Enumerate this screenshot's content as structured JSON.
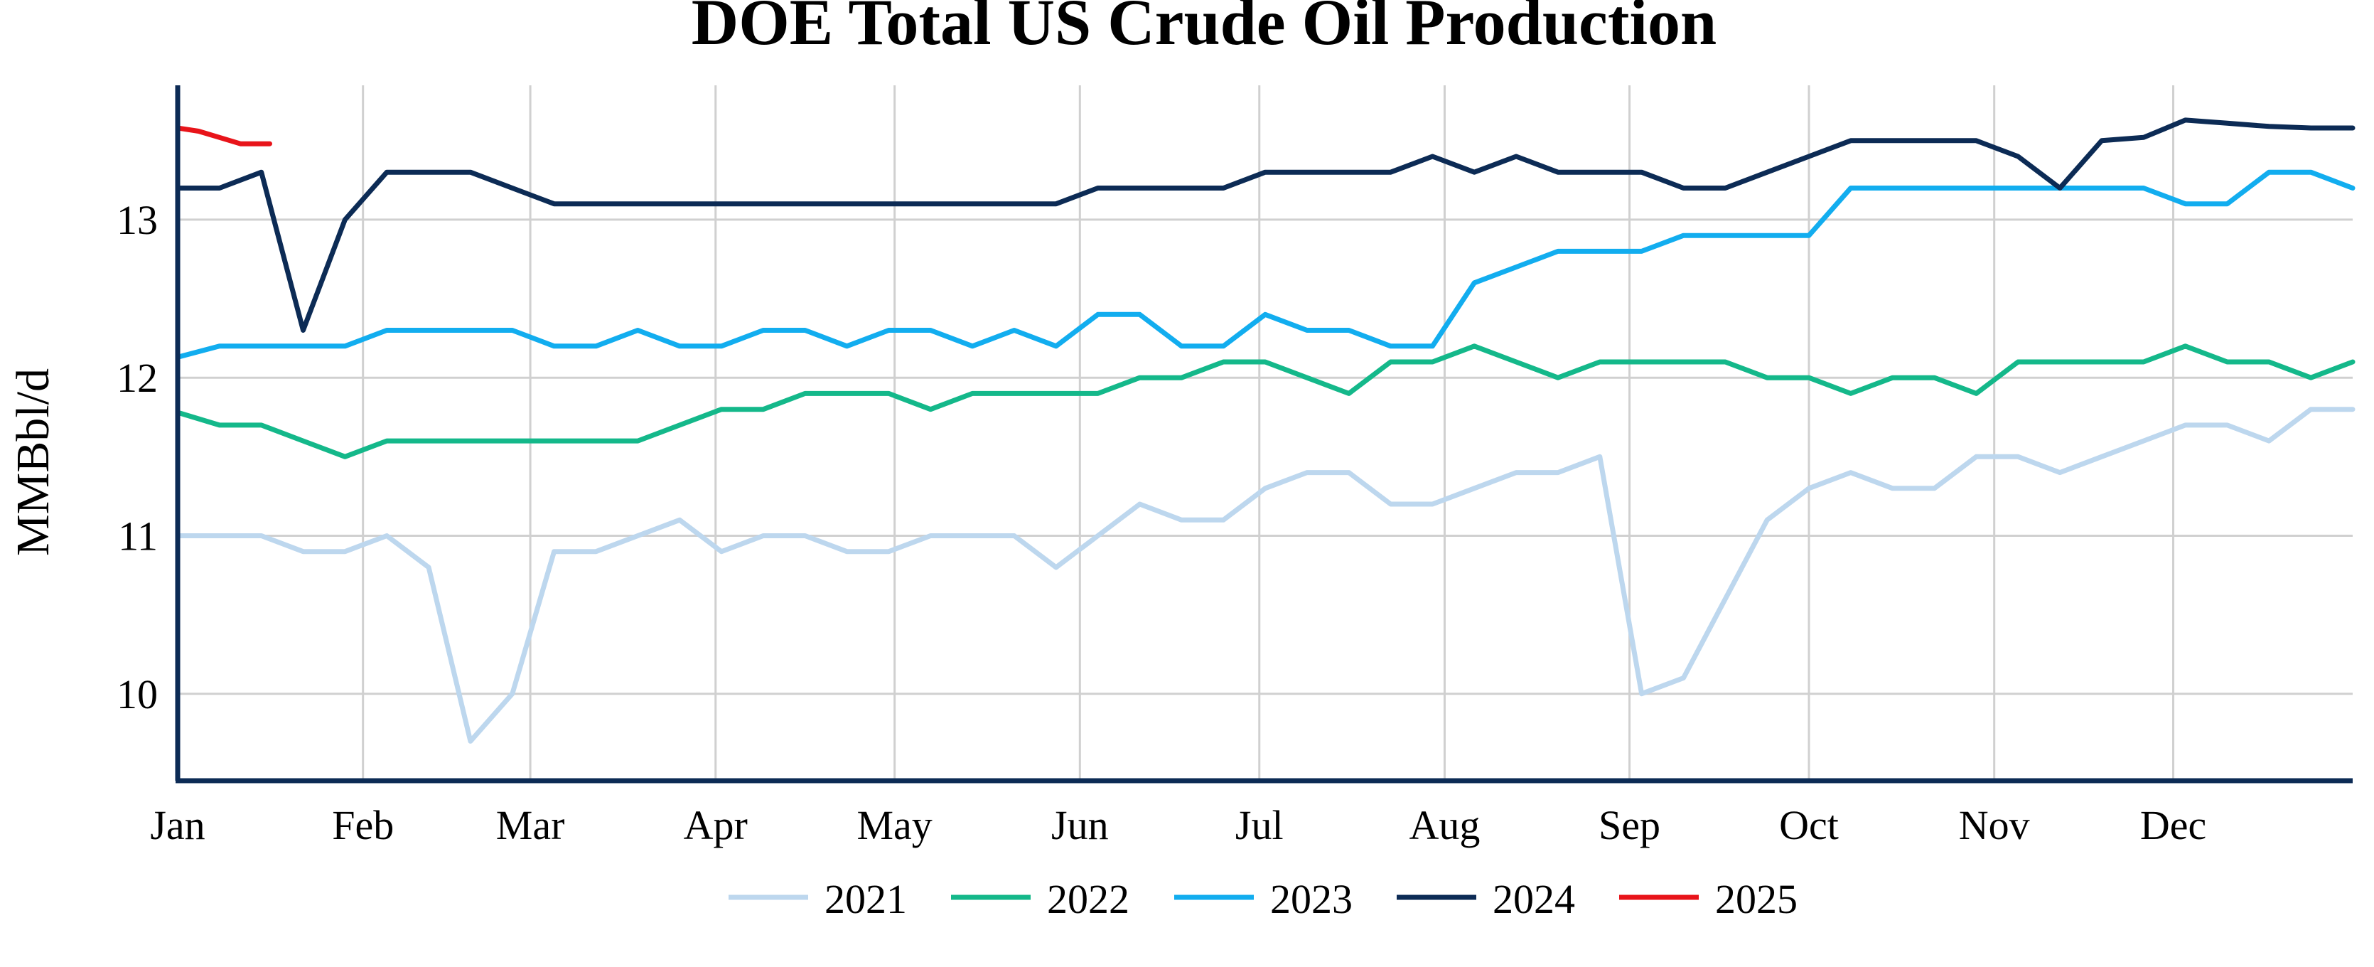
{
  "chart_data": {
    "type": "line",
    "title": "DOE Total US Crude Oil Production",
    "xlabel": "",
    "ylabel": "MMBbl/d",
    "x_unit": "week of year",
    "xlim": [
      1,
      53
    ],
    "ylim": [
      9.45,
      13.85
    ],
    "y_ticks": [
      10,
      11,
      12,
      13
    ],
    "y_tick_labels": [
      "10",
      "11",
      "12",
      "13"
    ],
    "x_ticks": [
      1,
      5.43,
      9.43,
      13.86,
      18.14,
      22.57,
      26.86,
      31.29,
      35.71,
      40,
      44.43,
      48.71
    ],
    "x_tick_labels": [
      "Jan",
      "Feb",
      "Mar",
      "Apr",
      "May",
      "Jun",
      "Jul",
      "Aug",
      "Sep",
      "Oct",
      "Nov",
      "Dec"
    ],
    "grid": true,
    "legend_position": "bottom",
    "series": [
      {
        "name": "2021",
        "color": "#bdd7ee",
        "x": [
          1,
          2,
          3,
          4,
          5,
          6,
          7,
          8,
          9,
          10,
          11,
          12,
          13,
          14,
          15,
          16,
          17,
          18,
          19,
          20,
          21,
          22,
          23,
          24,
          25,
          26,
          27,
          28,
          29,
          30,
          31,
          32,
          33,
          34,
          35,
          36,
          37,
          38,
          39,
          40,
          41,
          42,
          43,
          44,
          45,
          46,
          47,
          48,
          49,
          50,
          51,
          52,
          53
        ],
        "y": [
          11.0,
          11.0,
          11.0,
          10.9,
          10.9,
          11.0,
          10.8,
          9.7,
          10.0,
          10.9,
          10.9,
          11.0,
          11.1,
          10.9,
          11.0,
          11.0,
          10.9,
          10.9,
          11.0,
          11.0,
          11.0,
          10.8,
          11.0,
          11.2,
          11.1,
          11.1,
          11.3,
          11.4,
          11.4,
          11.2,
          11.2,
          11.3,
          11.4,
          11.4,
          11.5,
          10.0,
          10.1,
          10.6,
          11.1,
          11.3,
          11.4,
          11.3,
          11.3,
          11.5,
          11.5,
          11.4,
          11.5,
          11.6,
          11.7,
          11.7,
          11.6,
          11.8,
          11.8
        ]
      },
      {
        "name": "2022",
        "color": "#14b88a",
        "x": [
          1,
          2,
          3,
          4,
          5,
          6,
          7,
          8,
          9,
          10,
          11,
          12,
          13,
          14,
          15,
          16,
          17,
          18,
          19,
          20,
          21,
          22,
          23,
          24,
          25,
          26,
          27,
          28,
          29,
          30,
          31,
          32,
          33,
          34,
          35,
          36,
          37,
          38,
          39,
          40,
          41,
          42,
          43,
          44,
          45,
          46,
          47,
          48,
          49,
          50,
          51,
          52,
          53
        ],
        "y": [
          11.78,
          11.7,
          11.7,
          11.6,
          11.5,
          11.6,
          11.6,
          11.6,
          11.6,
          11.6,
          11.6,
          11.6,
          11.7,
          11.8,
          11.8,
          11.9,
          11.9,
          11.9,
          11.8,
          11.9,
          11.9,
          11.9,
          11.9,
          12.0,
          12.0,
          12.1,
          12.1,
          12.0,
          11.9,
          12.1,
          12.1,
          12.2,
          12.1,
          12.0,
          12.1,
          12.1,
          12.1,
          12.1,
          12.0,
          12.0,
          11.9,
          12.0,
          12.0,
          11.9,
          12.1,
          12.1,
          12.1,
          12.1,
          12.2,
          12.1,
          12.1,
          12.0,
          12.1
        ]
      },
      {
        "name": "2023",
        "color": "#12adef",
        "x": [
          1,
          2,
          3,
          4,
          5,
          6,
          7,
          8,
          9,
          10,
          11,
          12,
          13,
          14,
          15,
          16,
          17,
          18,
          19,
          20,
          21,
          22,
          23,
          24,
          25,
          26,
          27,
          28,
          29,
          30,
          31,
          32,
          33,
          34,
          35,
          36,
          37,
          38,
          39,
          40,
          41,
          42,
          43,
          44,
          45,
          46,
          47,
          48,
          49,
          50,
          51,
          52,
          53
        ],
        "y": [
          12.13,
          12.2,
          12.2,
          12.2,
          12.2,
          12.3,
          12.3,
          12.3,
          12.3,
          12.2,
          12.2,
          12.3,
          12.2,
          12.2,
          12.3,
          12.3,
          12.2,
          12.3,
          12.3,
          12.2,
          12.3,
          12.2,
          12.4,
          12.4,
          12.2,
          12.2,
          12.4,
          12.3,
          12.3,
          12.2,
          12.2,
          12.6,
          12.7,
          12.8,
          12.8,
          12.8,
          12.9,
          12.9,
          12.9,
          12.9,
          13.2,
          13.2,
          13.2,
          13.2,
          13.2,
          13.2,
          13.2,
          13.2,
          13.1,
          13.1,
          13.3,
          13.3,
          13.2
        ]
      },
      {
        "name": "2024",
        "color": "#0c2b55",
        "x": [
          1,
          2,
          3,
          4,
          5,
          6,
          7,
          8,
          9,
          10,
          11,
          12,
          13,
          14,
          15,
          16,
          17,
          18,
          19,
          20,
          21,
          22,
          23,
          24,
          25,
          26,
          27,
          28,
          29,
          30,
          31,
          32,
          33,
          34,
          35,
          36,
          37,
          38,
          39,
          40,
          41,
          42,
          43,
          44,
          45,
          46,
          47,
          48,
          49,
          50,
          51,
          52,
          53
        ],
        "y": [
          13.2,
          13.2,
          13.3,
          12.3,
          13.0,
          13.3,
          13.3,
          13.3,
          13.2,
          13.1,
          13.1,
          13.1,
          13.1,
          13.1,
          13.1,
          13.1,
          13.1,
          13.1,
          13.1,
          13.1,
          13.1,
          13.1,
          13.2,
          13.2,
          13.2,
          13.2,
          13.3,
          13.3,
          13.3,
          13.3,
          13.4,
          13.3,
          13.4,
          13.3,
          13.3,
          13.3,
          13.2,
          13.2,
          13.3,
          13.4,
          13.5,
          13.5,
          13.5,
          13.5,
          13.4,
          13.2,
          13.5,
          13.52,
          13.63,
          13.61,
          13.59,
          13.58,
          13.58
        ]
      },
      {
        "name": "2025",
        "color": "#e8141a",
        "x": [
          1,
          1.5,
          2,
          2.5,
          3.2
        ],
        "y": [
          13.58,
          13.56,
          13.52,
          13.48,
          13.48
        ]
      }
    ]
  }
}
